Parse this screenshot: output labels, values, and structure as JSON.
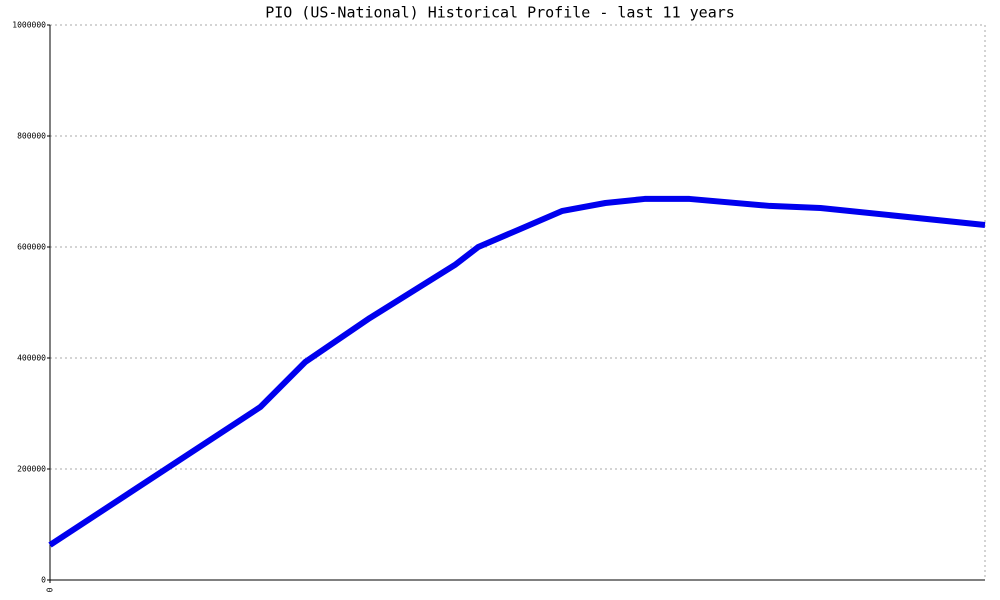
{
  "chart_data": {
    "type": "line",
    "title": "PIO (US-National) Historical Profile - last 11 years",
    "x": [
      0,
      22.5,
      27.3,
      34.2,
      43.3,
      45.8,
      50.3,
      54.8,
      59.4,
      63.6,
      68.4,
      77,
      82.4,
      100
    ],
    "series": [
      {
        "name": "PIO",
        "color": "#0000ee",
        "values": [
          63000,
          311700,
          392800,
          472000,
          567600,
          600000,
          632500,
          665000,
          679300,
          686600,
          686600,
          674000,
          670300,
          639700
        ]
      }
    ],
    "xlim": [
      0,
      100
    ],
    "xticks": [
      0
    ],
    "ylim": [
      0,
      1000000
    ],
    "yticks": [
      0,
      200000,
      400000,
      600000,
      800000,
      1000000
    ],
    "grid": true
  }
}
